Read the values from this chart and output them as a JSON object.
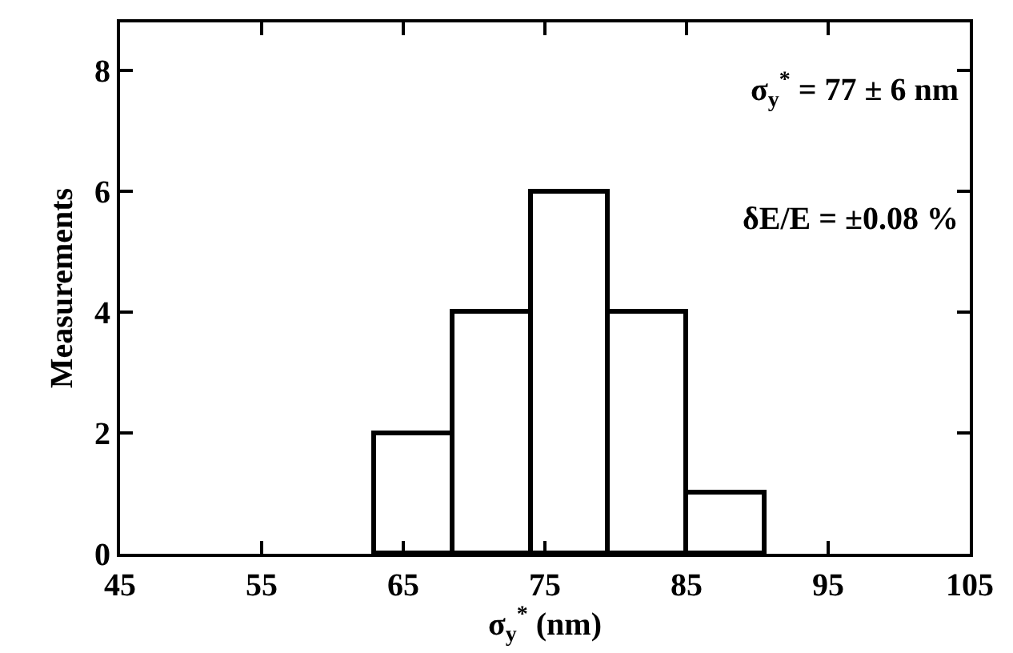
{
  "chart_data": {
    "type": "histogram",
    "xlabel": "σ$_{y}$$^{*}$ (nm)",
    "ylabel": "Measurements",
    "bins": [
      63,
      68.5,
      74,
      79.5,
      85,
      90.5
    ],
    "values": [
      2,
      4,
      6,
      4,
      1
    ],
    "color": "#000000",
    "xlim": [
      45,
      105
    ],
    "xticks": [
      45,
      55,
      65,
      75,
      85,
      95,
      105
    ],
    "ylim": [
      0,
      8.8
    ],
    "yticks": [
      0,
      2,
      4,
      6,
      8
    ],
    "annotations": [
      "σ$_{y}$$^{*}$ = 77 ± 6 nm",
      "δE/E = ±0.08 %"
    ]
  }
}
